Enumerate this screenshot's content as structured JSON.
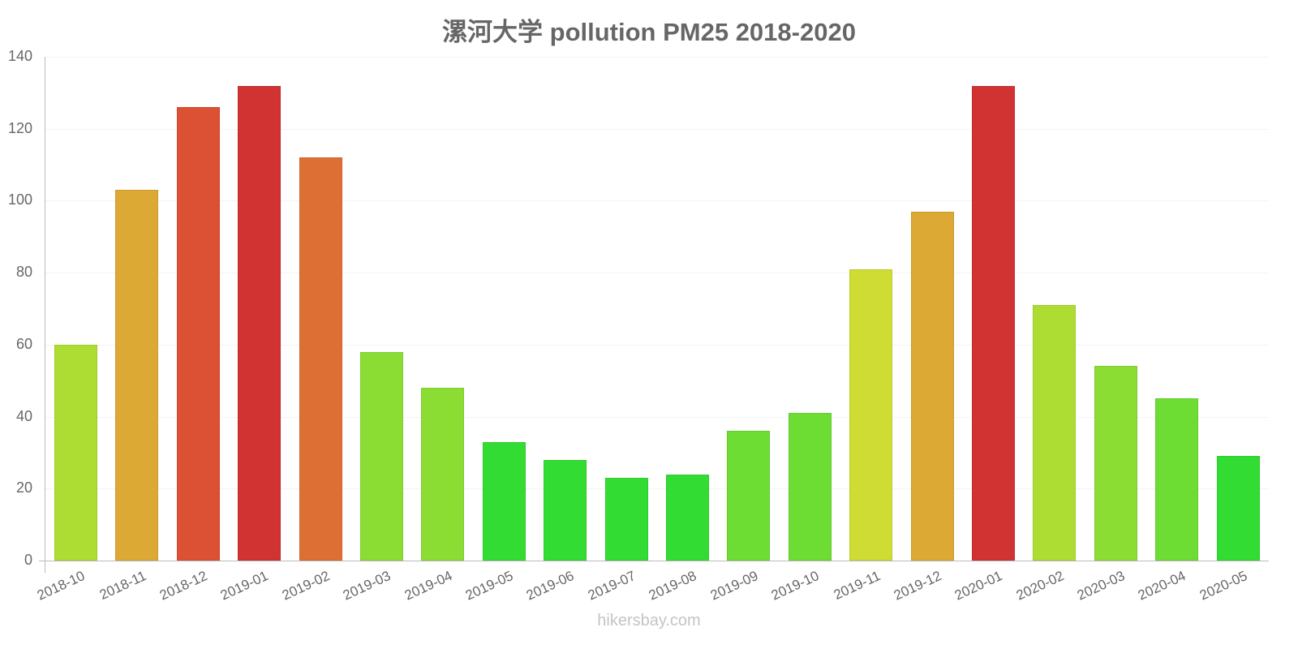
{
  "chart_data": {
    "type": "bar",
    "title": "漯河大学 pollution PM25 2018-2020",
    "xlabel": "",
    "ylabel": "",
    "ylim": [
      0,
      140
    ],
    "yticks": [
      0,
      20,
      40,
      60,
      80,
      100,
      120,
      140
    ],
    "grid": true,
    "legend": null,
    "categories": [
      "2018-10",
      "2018-11",
      "2018-12",
      "2019-01",
      "2019-02",
      "2019-03",
      "2019-04",
      "2019-05",
      "2019-06",
      "2019-07",
      "2019-08",
      "2019-09",
      "2019-10",
      "2019-11",
      "2019-12",
      "2020-01",
      "2020-02",
      "2020-03",
      "2020-04",
      "2020-05"
    ],
    "values": [
      60,
      103,
      126,
      132,
      112,
      58,
      48,
      33,
      28,
      23,
      24,
      36,
      41,
      81,
      97,
      132,
      71,
      54,
      45,
      29
    ],
    "colors": [
      "#addd33",
      "#dca934",
      "#dc5033",
      "#d13232",
      "#dd6f34",
      "#8bdc33",
      "#8bdc33",
      "#33dc33",
      "#33dc33",
      "#33dc33",
      "#33dc33",
      "#6ddc33",
      "#6ddc33",
      "#cfdc33",
      "#dca934",
      "#d13232",
      "#addd33",
      "#8bdc33",
      "#6ddc33",
      "#33dc33"
    ]
  },
  "footer": {
    "source": "hikersbay.com"
  }
}
